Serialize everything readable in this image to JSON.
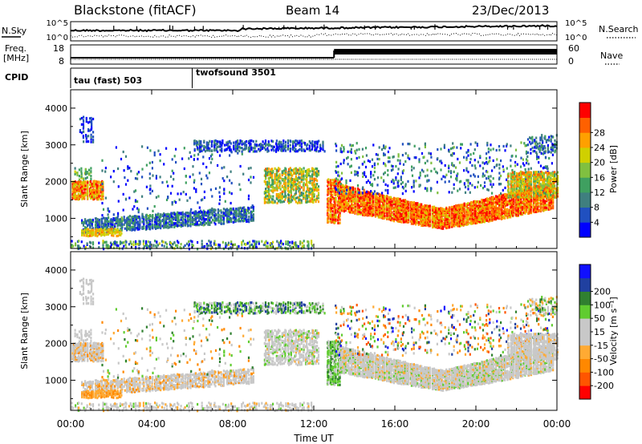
{
  "header": {
    "title": "Blackstone (fitACF)",
    "beam": "Beam 14",
    "date": "23/Dec/2013"
  },
  "noise_panel": {
    "left_label": "N.Sky",
    "right_label": "N.Search",
    "left_ticks": [
      "10^5",
      "10^0"
    ],
    "right_ticks": [
      "10^5",
      "10^0"
    ]
  },
  "freq_panel": {
    "left_label_line1": "Freq.",
    "left_label_line2": "[MHz]",
    "right_label": "Nave",
    "left_ticks": [
      "18",
      "8"
    ],
    "right_ticks": [
      "60",
      "0"
    ]
  },
  "cpid_panel": {
    "label": "CPID",
    "segments": [
      {
        "name": "tau (fast) 503",
        "start_hour": 0
      },
      {
        "name": "twofsound 3501",
        "start_hour": 6
      }
    ]
  },
  "colors": {
    "power_scale": [
      "#0000ff",
      "#2050c0",
      "#3f7f7f",
      "#3fa060",
      "#80c040",
      "#d0d000",
      "#ffa000",
      "#ff6000",
      "#ff0000"
    ],
    "velocity_scale": [
      "#ff0000",
      "#ff5500",
      "#ff8800",
      "#ffaa33",
      "#c8c8c8",
      "#c8c8c8",
      "#60cc30",
      "#308030",
      "#2040a0",
      "#1010ff"
    ]
  },
  "chart_data": [
    {
      "type": "heatmap",
      "name": "power",
      "ylabel": "Slant Range [km]",
      "ylim": [
        180,
        4500
      ],
      "xlim": [
        0,
        24
      ],
      "yticks": [
        "1000",
        "2000",
        "3000",
        "4000"
      ],
      "colorbar_label": "Power [dB]",
      "colorbar_ticks": [
        "4",
        "8",
        "12",
        "16",
        "20",
        "24",
        "28"
      ],
      "colorbar_range": [
        0,
        32
      ]
    },
    {
      "type": "heatmap",
      "name": "velocity",
      "ylabel": "Slant Range [km]",
      "ylim": [
        180,
        4500
      ],
      "xlim": [
        0,
        24
      ],
      "yticks": [
        "1000",
        "2000",
        "3000",
        "4000"
      ],
      "colorbar_label": "Velocity [m s⁻¹]",
      "colorbar_ticks": [
        "-200",
        "-100",
        "-50",
        "-15",
        "15",
        "50",
        "100",
        "200"
      ]
    }
  ],
  "x_axis": {
    "label": "Time UT",
    "ticks": [
      "00:00",
      "04:00",
      "08:00",
      "12:00",
      "16:00",
      "20:00",
      "00:00"
    ]
  }
}
